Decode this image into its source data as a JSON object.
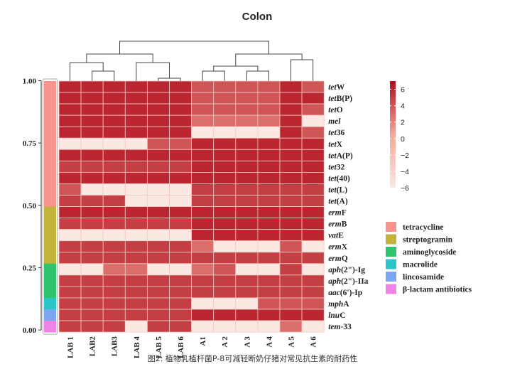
{
  "caption": "图2: 植物乳植杆菌P-8可减轻断奶仔猪对常见抗生素的耐药性",
  "colors": {
    "scale_low": "#fbe8e2",
    "scale_mid": "#f2a89a",
    "scale_high": "#b0101e",
    "cell_border": "#f3c9c4",
    "cell_low_flat": "#fbe3dc"
  },
  "chart_data": {
    "type": "heatmap",
    "title": "Colon",
    "columns": [
      "LAB 1",
      "LAB2",
      "LAB3",
      "LAB 4",
      "LAB 5",
      "LAB 6",
      "A1",
      "A 2",
      "A 3",
      "A 4",
      "A 5",
      "A 6"
    ],
    "rows": [
      {
        "italic": "tet",
        "rest": "W",
        "category": "tetracycline"
      },
      {
        "italic": "tet",
        "rest": "B(P)",
        "category": "tetracycline"
      },
      {
        "italic": "tet",
        "rest": "O",
        "category": "tetracycline"
      },
      {
        "italic": "mel",
        "rest": "",
        "category": "tetracycline"
      },
      {
        "italic": "tet",
        "rest": "36",
        "category": "tetracycline"
      },
      {
        "italic": "tet",
        "rest": "X",
        "category": "tetracycline"
      },
      {
        "italic": "tet",
        "rest": "A(P)",
        "category": "tetracycline"
      },
      {
        "italic": "tet",
        "rest": "32",
        "category": "tetracycline"
      },
      {
        "italic": "tet",
        "rest": "(40)",
        "category": "tetracycline"
      },
      {
        "italic": "tet",
        "rest": "(L)",
        "category": "tetracycline"
      },
      {
        "italic": "tet",
        "rest": "(A)",
        "category": "tetracycline"
      },
      {
        "italic": "erm",
        "rest": "F",
        "category": "streptogramin"
      },
      {
        "italic": "erm",
        "rest": "B",
        "category": "streptogramin"
      },
      {
        "italic": "vat",
        "rest": "E",
        "category": "streptogramin"
      },
      {
        "italic": "erm",
        "rest": "X",
        "category": "streptogramin"
      },
      {
        "italic": "erm",
        "rest": "Q",
        "category": "streptogramin"
      },
      {
        "italic": "aph",
        "rest": "(2\")-Ig",
        "category": "aminoglycoside"
      },
      {
        "italic": "aph",
        "rest": "(2\")-IIa",
        "category": "aminoglycoside"
      },
      {
        "italic": "aac",
        "rest": "(6')-Ip",
        "category": "aminoglycoside"
      },
      {
        "italic": "mph",
        "rest": "A",
        "category": "macrolide"
      },
      {
        "italic": "lnu",
        "rest": "C",
        "category": "lincosamide"
      },
      {
        "italic": "tem",
        "rest": "-33",
        "category": "β-lactam antibiotics"
      }
    ],
    "values": [
      [
        6,
        6,
        6,
        6,
        6,
        6,
        4,
        4,
        4,
        4,
        6,
        4
      ],
      [
        6,
        6,
        6,
        6,
        6,
        6,
        4,
        4,
        4,
        4,
        6,
        6
      ],
      [
        6,
        6,
        6,
        6,
        6,
        6,
        4,
        4,
        4,
        4,
        6,
        4
      ],
      [
        6,
        6,
        6,
        6,
        6,
        6,
        3,
        3,
        3,
        3,
        6,
        -6
      ],
      [
        6,
        6,
        6,
        6,
        6,
        6,
        -6,
        -6,
        -6,
        -6,
        6,
        4
      ],
      [
        -6,
        -6,
        -6,
        -6,
        4,
        4,
        6,
        6,
        6,
        6,
        6,
        6
      ],
      [
        6,
        6,
        6,
        6,
        6,
        6,
        6,
        6,
        6,
        6,
        6,
        6
      ],
      [
        5,
        5,
        5,
        5,
        5,
        5,
        6,
        6,
        6,
        6,
        6,
        6
      ],
      [
        6,
        6,
        6,
        6,
        6,
        6,
        6,
        6,
        6,
        6,
        6,
        6
      ],
      [
        4,
        -6,
        -6,
        -6,
        -6,
        -6,
        5,
        5,
        5,
        5,
        5,
        5
      ],
      [
        5,
        5,
        5,
        -6,
        -6,
        -6,
        5,
        5,
        5,
        5,
        5,
        5
      ],
      [
        6,
        6,
        6,
        6,
        6,
        6,
        6,
        6,
        6,
        6,
        6,
        6
      ],
      [
        5,
        5,
        5,
        5,
        5,
        5,
        6,
        6,
        6,
        6,
        6,
        6
      ],
      [
        -6,
        -6,
        -6,
        -6,
        -6,
        -6,
        6,
        6,
        6,
        6,
        6,
        6
      ],
      [
        5,
        5,
        5,
        5,
        5,
        5,
        3,
        -6,
        -6,
        -6,
        4,
        -6
      ],
      [
        5,
        5,
        5,
        5,
        5,
        5,
        5,
        5,
        5,
        5,
        5,
        5
      ],
      [
        -6,
        -6,
        3,
        3,
        -6,
        -6,
        3,
        4,
        -6,
        -6,
        5,
        -6
      ],
      [
        5,
        5,
        5,
        5,
        5,
        5,
        5,
        5,
        5,
        5,
        5,
        5
      ],
      [
        5,
        5,
        5,
        5,
        5,
        5,
        5,
        5,
        5,
        5,
        5,
        5
      ],
      [
        5,
        5,
        5,
        5,
        5,
        5,
        -6,
        -6,
        -6,
        4,
        4,
        4
      ],
      [
        5,
        5,
        5,
        5,
        5,
        5,
        6,
        6,
        6,
        6,
        6,
        6
      ],
      [
        5,
        5,
        5,
        -6,
        5,
        5,
        -6,
        -6,
        -6,
        -6,
        3,
        -6
      ]
    ],
    "color_scale": {
      "min": -6,
      "max": 7,
      "ticks": [
        6,
        4,
        2,
        0,
        -2,
        -4,
        -6
      ]
    },
    "left_axis": {
      "ticks": [
        "1.00",
        "0.75",
        "0.50",
        "0.25",
        "0.00"
      ]
    },
    "legend": {
      "placement": "right",
      "items": [
        {
          "label": "tetracycline",
          "color": "#f7948b"
        },
        {
          "label": "streptogramin",
          "color": "#c3b23c"
        },
        {
          "label": "aminoglycoside",
          "color": "#2ec46e"
        },
        {
          "label": "macrolide",
          "color": "#2dc6c8"
        },
        {
          "label": "lincosamide",
          "color": "#7ba7f2"
        },
        {
          "label": "β-lactam antibiotics",
          "color": "#f283e6"
        }
      ]
    },
    "grid": false
  }
}
